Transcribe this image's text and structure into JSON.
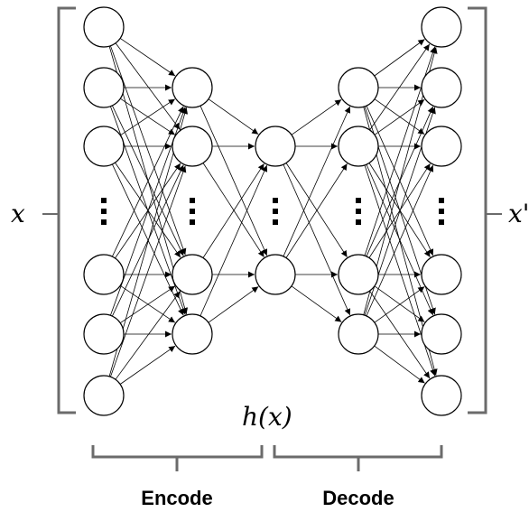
{
  "diagram": {
    "input_label": "x",
    "output_label": "x'",
    "code_label": "h(x)",
    "encode_label": "Encode",
    "decode_label": "Decode"
  },
  "colors": {
    "bracket": "#6b6b6b",
    "node_stroke": "#000000",
    "node_fill": "#ffffff"
  },
  "network": {
    "layers": [
      {
        "name": "input",
        "visible_nodes": 6,
        "ellipsis": true
      },
      {
        "name": "encoder-hidden",
        "visible_nodes": 4,
        "ellipsis": true
      },
      {
        "name": "code",
        "visible_nodes": 2,
        "ellipsis": true
      },
      {
        "name": "decoder-hidden",
        "visible_nodes": 4,
        "ellipsis": true
      },
      {
        "name": "output",
        "visible_nodes": 6,
        "ellipsis": true
      }
    ]
  }
}
